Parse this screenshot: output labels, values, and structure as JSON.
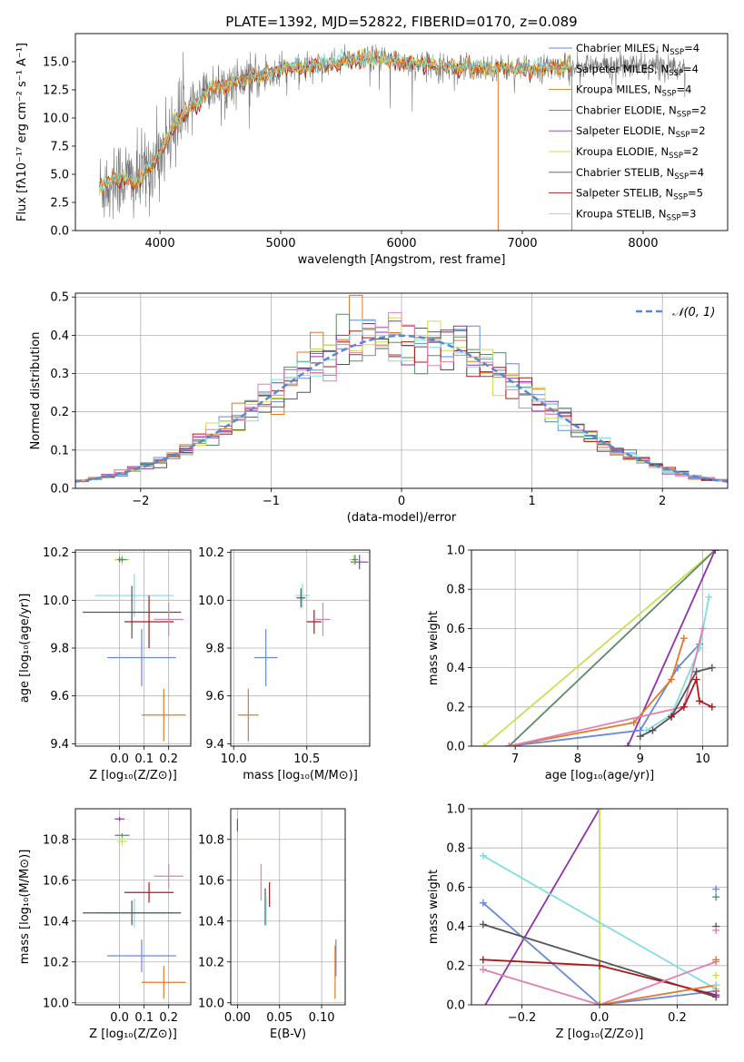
{
  "figure_title": "PLATE=1392, MJD=52822, FIBERID=0170, z=0.089",
  "colors": {
    "Chabrier MILES": "#6688dd",
    "Salpeter MILES": "#e07828",
    "Kroupa MILES": "#e07828",
    "Chabrier ELODIE": "#5a8a6a",
    "Salpeter ELODIE": "#9030b0",
    "Kroupa ELODIE": "#c8e050",
    "Chabrier STELIB": "#555555",
    "Salpeter STELIB": "#aa1a1a",
    "Kroupa STELIB": "#80dde0",
    "extra_pink": "#e080b0",
    "normal_curve": "#5a88d0",
    "grid": "#b0b0b0"
  },
  "chart_data": [
    {
      "id": "spectrum",
      "type": "line",
      "title": "PLATE=1392, MJD=52822, FIBERID=0170, z=0.089",
      "xlabel": "wavelength [Angstrom, rest frame]",
      "ylabel": "Flux [f_λ 10^-17 erg cm^-2 s^-1 A^-1]",
      "xlim": [
        3300,
        8700
      ],
      "ylim": [
        0,
        17.5
      ],
      "xticks": [
        4000,
        5000,
        6000,
        7000,
        8000
      ],
      "yticks": [
        0.0,
        2.5,
        5.0,
        7.5,
        10.0,
        12.5,
        15.0
      ],
      "grid": false,
      "legend_position": "right",
      "legend": [
        "Chabrier MILES, N_SSP=4",
        "Salpeter MILES, N_SSP=4",
        "Kroupa MILES, N_SSP=4",
        "Chabrier ELODIE, N_SSP=2",
        "Salpeter ELODIE, N_SSP=2",
        "Kroupa ELODIE, N_SSP=2",
        "Chabrier STELIB, N_SSP=4",
        "Salpeter STELIB, N_SSP=5",
        "Kroupa STELIB, N_SSP=3"
      ],
      "continuum": {
        "x": [
          3500,
          3600,
          3700,
          3800,
          3900,
          4000,
          4100,
          4200,
          4300,
          4400,
          4500,
          4600,
          4700,
          4800,
          4900,
          5000,
          5200,
          5400,
          5600,
          5800,
          6000,
          6200,
          6400,
          6600,
          6800,
          7000,
          7200,
          7400
        ],
        "y": [
          3.8,
          4.5,
          4.8,
          4.2,
          5.5,
          6.8,
          9.2,
          10.5,
          11.2,
          12.5,
          12.8,
          13.2,
          13.4,
          13.6,
          13.9,
          14.3,
          14.6,
          14.8,
          15.2,
          15.3,
          15.0,
          14.8,
          14.5,
          14.5,
          14.5,
          14.3,
          14.5,
          14.6
        ]
      },
      "observed_range": [
        3500,
        8350
      ]
    },
    {
      "id": "residuals",
      "type": "histogram",
      "xlabel": "(data-model)/error",
      "ylabel": "Normed distribution",
      "xlim": [
        -2.5,
        2.5
      ],
      "ylim": [
        0,
        0.51
      ],
      "xticks": [
        -2,
        -1,
        0,
        1,
        2
      ],
      "yticks": [
        0.0,
        0.1,
        0.2,
        0.3,
        0.4,
        0.5
      ],
      "grid": true,
      "legend": [
        "𝒩(0, 1)"
      ],
      "legend_position": "top-right",
      "bin_width": 0.1
    },
    {
      "id": "age_vs_Z",
      "type": "errorbar",
      "xlabel": "Z [log10(Z/Z⊙)]",
      "ylabel": "age  [log10(age/yr)]",
      "xlim": [
        -0.18,
        0.29
      ],
      "ylim": [
        9.39,
        10.21
      ],
      "xticks": [
        0.0,
        0.1,
        0.2
      ],
      "yticks": [
        9.4,
        9.6,
        9.8,
        10.0,
        10.2
      ],
      "grid": true,
      "points": [
        {
          "model": "Salpeter ELODIE",
          "x": 0.0,
          "y": 10.17,
          "xerr": 0.02,
          "yerr": 0.01
        },
        {
          "model": "Kroupa ELODIE",
          "x": 0.01,
          "y": 10.17,
          "xerr": 0.03,
          "yerr": 0.02
        },
        {
          "model": "Chabrier ELODIE",
          "x": 0.01,
          "y": 10.17,
          "xerr": 0.02,
          "yerr": 0.01
        },
        {
          "model": "Kroupa STELIB",
          "x": 0.06,
          "y": 10.02,
          "xerr": 0.16,
          "yerr": 0.09
        },
        {
          "model": "Chabrier STELIB",
          "x": 0.05,
          "y": 9.95,
          "xerr": 0.2,
          "yerr": 0.11
        },
        {
          "model": "Salpeter STELIB",
          "x": 0.12,
          "y": 9.91,
          "xerr": 0.1,
          "yerr": 0.11
        },
        {
          "model": "extra_pink",
          "x": 0.2,
          "y": 9.92,
          "xerr": 0.06,
          "yerr": 0.07
        },
        {
          "model": "Chabrier MILES",
          "x": 0.09,
          "y": 9.76,
          "xerr": 0.14,
          "yerr": 0.12
        },
        {
          "model": "Salpeter MILES",
          "x": 0.18,
          "y": 9.52,
          "xerr": 0.09,
          "yerr": 0.11
        }
      ]
    },
    {
      "id": "age_vs_mass",
      "type": "errorbar",
      "xlabel": "mass [log10(M/M⊙)]",
      "ylabel": "",
      "xlim": [
        9.98,
        10.93
      ],
      "ylim": [
        9.39,
        10.21
      ],
      "xticks": [
        10.0,
        10.5
      ],
      "yticks": [
        9.4,
        9.6,
        9.8,
        10.0,
        10.2
      ],
      "grid": true,
      "points": [
        {
          "model": "Salpeter ELODIE",
          "x": 10.86,
          "y": 10.16,
          "xerr": 0.06,
          "yerr": 0.03
        },
        {
          "model": "Kroupa ELODIE",
          "x": 10.82,
          "y": 10.17,
          "xerr": 0.03,
          "yerr": 0.02
        },
        {
          "model": "Chabrier ELODIE",
          "x": 10.83,
          "y": 10.17,
          "xerr": 0.02,
          "yerr": 0.02
        },
        {
          "model": "Kroupa STELIB",
          "x": 10.47,
          "y": 10.02,
          "xerr": 0.05,
          "yerr": 0.05
        },
        {
          "model": "Chabrier STELIB",
          "x": 10.46,
          "y": 10.01,
          "xerr": 0.03,
          "yerr": 0.04
        },
        {
          "model": "Salpeter STELIB",
          "x": 10.55,
          "y": 9.91,
          "xerr": 0.05,
          "yerr": 0.05
        },
        {
          "model": "extra_pink",
          "x": 10.61,
          "y": 9.92,
          "xerr": 0.05,
          "yerr": 0.07
        },
        {
          "model": "Chabrier MILES",
          "x": 10.22,
          "y": 9.76,
          "xerr": 0.08,
          "yerr": 0.12
        },
        {
          "model": "Salpeter MILES",
          "x": 10.1,
          "y": 9.52,
          "xerr": 0.07,
          "yerr": 0.11
        }
      ]
    },
    {
      "id": "mass_weight_vs_age",
      "type": "line",
      "xlabel": "age  [log10(age/yr)]",
      "ylabel": "mass weight",
      "xlim": [
        6.3,
        10.4
      ],
      "ylim": [
        0,
        1.0
      ],
      "xticks": [
        7,
        8,
        9,
        10
      ],
      "yticks": [
        0.0,
        0.2,
        0.4,
        0.6,
        0.8,
        1.0
      ],
      "grid": true,
      "series": [
        {
          "model": "Kroupa ELODIE",
          "x": [
            6.5,
            10.2
          ],
          "y": [
            0.0,
            1.0
          ]
        },
        {
          "model": "Chabrier ELODIE",
          "x": [
            6.9,
            10.2
          ],
          "y": [
            0.0,
            1.0
          ]
        },
        {
          "model": "Salpeter ELODIE",
          "x": [
            8.8,
            10.2
          ],
          "y": [
            0.0,
            1.0
          ]
        },
        {
          "model": "Chabrier MILES",
          "x": [
            6.9,
            9.0,
            9.6,
            9.95
          ],
          "y": [
            0.0,
            0.08,
            0.4,
            0.52
          ]
        },
        {
          "model": "Salpeter MILES",
          "x": [
            6.9,
            8.9,
            9.5,
            9.7
          ],
          "y": [
            0.0,
            0.12,
            0.34,
            0.55
          ]
        },
        {
          "model": "Kroupa STELIB",
          "x": [
            9.1,
            9.5,
            9.95,
            10.1
          ],
          "y": [
            0.08,
            0.16,
            0.5,
            0.76
          ]
        },
        {
          "model": "extra_pink",
          "x": [
            6.9,
            9.7,
            10.0
          ],
          "y": [
            0.0,
            0.2,
            0.6
          ]
        },
        {
          "model": "Chabrier STELIB",
          "x": [
            9.0,
            9.2,
            9.5,
            9.9,
            10.15
          ],
          "y": [
            0.05,
            0.08,
            0.15,
            0.38,
            0.4
          ]
        },
        {
          "model": "Salpeter STELIB",
          "x": [
            9.5,
            9.7,
            9.9,
            9.95,
            10.15
          ],
          "y": [
            0.15,
            0.2,
            0.34,
            0.23,
            0.2
          ]
        }
      ]
    },
    {
      "id": "mass_vs_Z",
      "type": "errorbar",
      "xlabel": "Z [log10(Z/Z⊙)]",
      "ylabel": "mass [log10(M/M⊙)]",
      "xlim": [
        -0.18,
        0.29
      ],
      "ylim": [
        9.99,
        10.95
      ],
      "xticks": [
        0.0,
        0.1,
        0.2
      ],
      "yticks": [
        10.0,
        10.2,
        10.4,
        10.6,
        10.8
      ],
      "grid": true,
      "points": [
        {
          "model": "Salpeter ELODIE",
          "x": 0.0,
          "y": 10.9,
          "xerr": 0.02,
          "yerr": 0.01
        },
        {
          "model": "Chabrier ELODIE",
          "x": 0.01,
          "y": 10.82,
          "xerr": 0.03,
          "yerr": 0.01
        },
        {
          "model": "Kroupa ELODIE",
          "x": 0.01,
          "y": 10.79,
          "xerr": 0.02,
          "yerr": 0.02
        },
        {
          "model": "extra_pink",
          "x": 0.2,
          "y": 10.62,
          "xerr": 0.06,
          "yerr": 0.06
        },
        {
          "model": "Salpeter STELIB",
          "x": 0.12,
          "y": 10.54,
          "xerr": 0.1,
          "yerr": 0.05
        },
        {
          "model": "Kroupa STELIB",
          "x": 0.06,
          "y": 10.44,
          "xerr": 0.16,
          "yerr": 0.07
        },
        {
          "model": "Chabrier STELIB",
          "x": 0.05,
          "y": 10.44,
          "xerr": 0.2,
          "yerr": 0.06
        },
        {
          "model": "Chabrier MILES",
          "x": 0.09,
          "y": 10.23,
          "xerr": 0.14,
          "yerr": 0.08
        },
        {
          "model": "Salpeter MILES",
          "x": 0.18,
          "y": 10.1,
          "xerr": 0.09,
          "yerr": 0.08
        }
      ]
    },
    {
      "id": "mass_vs_EBV",
      "type": "errorbar",
      "xlabel": "E(B-V)",
      "ylabel": "",
      "xlim": [
        -0.008,
        0.128
      ],
      "ylim": [
        9.99,
        10.95
      ],
      "xticks": [
        0.0,
        0.05,
        0.1
      ],
      "yticks": [
        10.0,
        10.2,
        10.4,
        10.6,
        10.8
      ],
      "grid": true,
      "points": [
        {
          "model": "Salpeter ELODIE",
          "x": 0.0,
          "y": 10.87,
          "xerr": 0.0,
          "yerr": 0.03
        },
        {
          "model": "Kroupa ELODIE",
          "x": 0.0,
          "y": 10.78,
          "xerr": 0.0,
          "yerr": 0.02
        },
        {
          "model": "extra_pink",
          "x": 0.028,
          "y": 10.59,
          "xerr": 0.0,
          "yerr": 0.09
        },
        {
          "model": "Chabrier STELIB",
          "x": 0.033,
          "y": 10.47,
          "xerr": 0.0,
          "yerr": 0.09
        },
        {
          "model": "Kroupa STELIB",
          "x": 0.034,
          "y": 10.45,
          "xerr": 0.0,
          "yerr": 0.07
        },
        {
          "model": "Salpeter STELIB",
          "x": 0.038,
          "y": 10.53,
          "xerr": 0.0,
          "yerr": 0.06
        },
        {
          "model": "Chabrier MILES",
          "x": 0.117,
          "y": 10.22,
          "xerr": 0.0,
          "yerr": 0.09
        },
        {
          "model": "Salpeter MILES",
          "x": 0.116,
          "y": 10.15,
          "xerr": 0.0,
          "yerr": 0.13
        }
      ]
    },
    {
      "id": "mass_weight_vs_Z",
      "type": "line",
      "xlabel": "Z [log10(Z/Z⊙)]",
      "ylabel": "mass weight",
      "xlim": [
        -0.33,
        0.33
      ],
      "ylim": [
        0,
        1.0
      ],
      "xticks": [
        -0.2,
        0.0,
        0.2
      ],
      "yticks": [
        0.0,
        0.2,
        0.4,
        0.6,
        0.8,
        1.0
      ],
      "grid": true,
      "series": [
        {
          "model": "Salpeter ELODIE",
          "x": [
            -0.3,
            0.0
          ],
          "y": [
            -0.02,
            1.0
          ]
        },
        {
          "model": "Kroupa ELODIE",
          "x": [
            0.0,
            0.0
          ],
          "y": [
            0.0,
            1.0
          ]
        },
        {
          "model": "Kroupa STELIB",
          "x": [
            -0.3,
            0.3
          ],
          "y": [
            0.76,
            0.08
          ]
        },
        {
          "model": "Chabrier MILES",
          "x": [
            -0.3,
            0.0,
            0.3
          ],
          "y": [
            0.52,
            0.0,
            0.07
          ]
        },
        {
          "model": "Chabrier STELIB",
          "x": [
            -0.3,
            0.3
          ],
          "y": [
            0.41,
            0.04
          ]
        },
        {
          "model": "Salpeter STELIB",
          "x": [
            -0.3,
            0.0,
            0.3
          ],
          "y": [
            0.23,
            0.2,
            0.05
          ]
        },
        {
          "model": "extra_pink",
          "x": [
            -0.3,
            0.0,
            0.3
          ],
          "y": [
            0.18,
            0.0,
            0.22
          ]
        },
        {
          "model": "Salpeter MILES",
          "x": [
            0.0,
            0.3
          ],
          "y": [
            0.0,
            0.1
          ]
        }
      ],
      "markers_at_right": [
        0.59,
        0.55,
        0.4,
        0.38,
        0.23,
        0.15,
        0.1,
        0.07,
        0.05
      ]
    }
  ]
}
